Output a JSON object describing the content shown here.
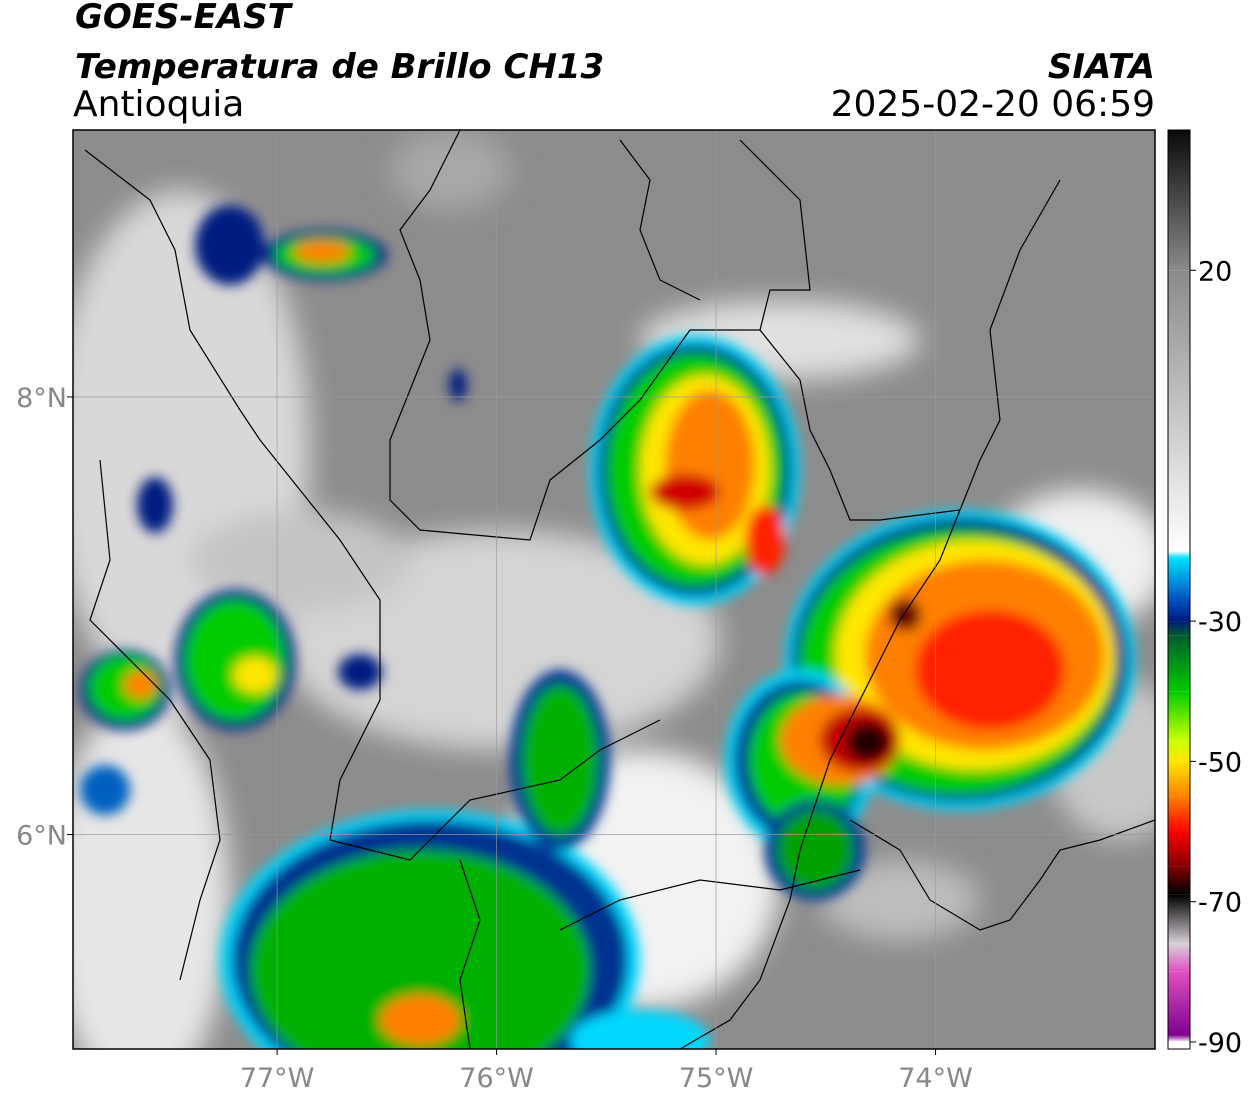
{
  "chart_data": {
    "type": "map",
    "title": "GOES-EAST",
    "subtitle": "Temperatura de Brillo CH13",
    "region": "Antioquia",
    "source": "SIATA",
    "datetime": "2025-02-20 06:59",
    "xlim": [
      -77.93,
      -73.0
    ],
    "ylim": [
      5.02,
      9.22
    ],
    "xticks": [
      {
        "value": -77,
        "label": "77°W"
      },
      {
        "value": -76,
        "label": "76°W"
      },
      {
        "value": -75,
        "label": "75°W"
      },
      {
        "value": -74,
        "label": "74°W"
      }
    ],
    "yticks": [
      {
        "value": 6,
        "label": "6°N"
      },
      {
        "value": 8,
        "label": "8°N"
      }
    ],
    "grid": true,
    "clim": [
      -91,
      40
    ],
    "cticks": [
      20,
      -30,
      -50,
      -70,
      -90
    ],
    "colormap": [
      {
        "value": 40,
        "color": "#0a0a0a"
      },
      {
        "value": 20,
        "color": "#8a8a8a"
      },
      {
        "value": -20,
        "color": "#ffffff"
      },
      {
        "value": -21,
        "color": "#00e0ff"
      },
      {
        "value": -27,
        "color": "#0050c0"
      },
      {
        "value": -30,
        "color": "#001a80"
      },
      {
        "value": -32,
        "color": "#005a30"
      },
      {
        "value": -40,
        "color": "#00cc00"
      },
      {
        "value": -47,
        "color": "#c8ff00"
      },
      {
        "value": -50,
        "color": "#ffe600"
      },
      {
        "value": -55,
        "color": "#ff8000"
      },
      {
        "value": -60,
        "color": "#ff0000"
      },
      {
        "value": -65,
        "color": "#800000"
      },
      {
        "value": -69,
        "color": "#000000"
      },
      {
        "value": -76,
        "color": "#d8d0d8"
      },
      {
        "value": -80,
        "color": "#e050c0"
      },
      {
        "value": -89,
        "color": "#800090"
      },
      {
        "value": -90,
        "color": "#ffffff"
      }
    ]
  }
}
